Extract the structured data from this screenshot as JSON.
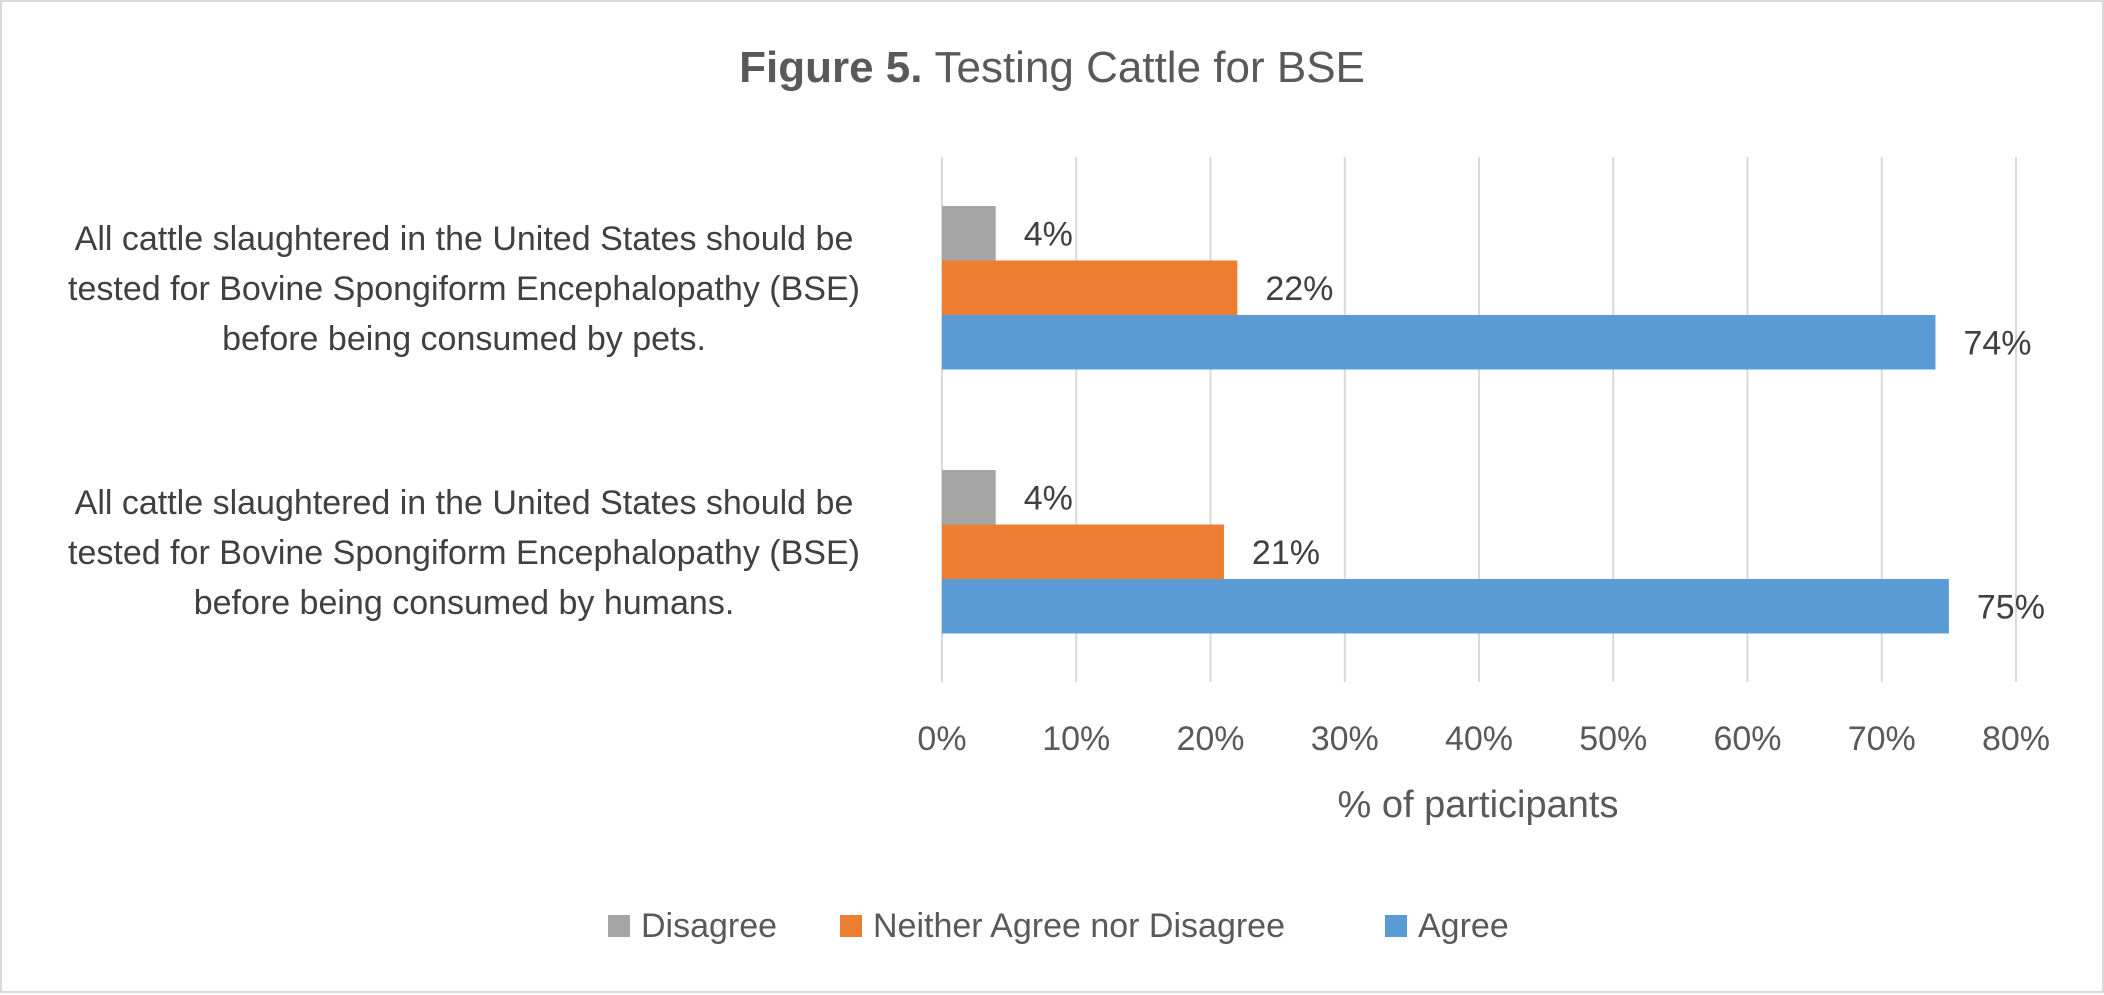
{
  "chart_data": {
    "type": "bar",
    "orientation": "horizontal",
    "title_bold": "Figure 5.",
    "title_rest": "Testing Cattle for BSE",
    "categories": [
      [
        "All cattle slaughtered in the United States should be",
        "tested for Bovine Spongiform Encephalopathy (BSE)",
        "before being consumed by pets."
      ],
      [
        "All cattle slaughtered in the United States should be",
        "tested for Bovine Spongiform Encephalopathy (BSE)",
        "before being consumed by humans."
      ]
    ],
    "series": [
      {
        "name": "Disagree",
        "color": "#a5a5a5",
        "values": [
          4,
          4
        ],
        "labels": [
          "4%",
          "4%"
        ]
      },
      {
        "name": "Neither Agree nor Disagree",
        "color": "#ed7d31",
        "values": [
          22,
          21
        ],
        "labels": [
          "22%",
          "21%"
        ]
      },
      {
        "name": "Agree",
        "color": "#5b9bd5",
        "values": [
          74,
          75
        ],
        "labels": [
          "74%",
          "75%"
        ]
      }
    ],
    "xlabel": "% of participants",
    "xlim": [
      0,
      80
    ],
    "xticks": [
      "0%",
      "10%",
      "20%",
      "30%",
      "40%",
      "50%",
      "60%",
      "70%",
      "80%"
    ],
    "grid": true,
    "legend_position": "bottom"
  }
}
